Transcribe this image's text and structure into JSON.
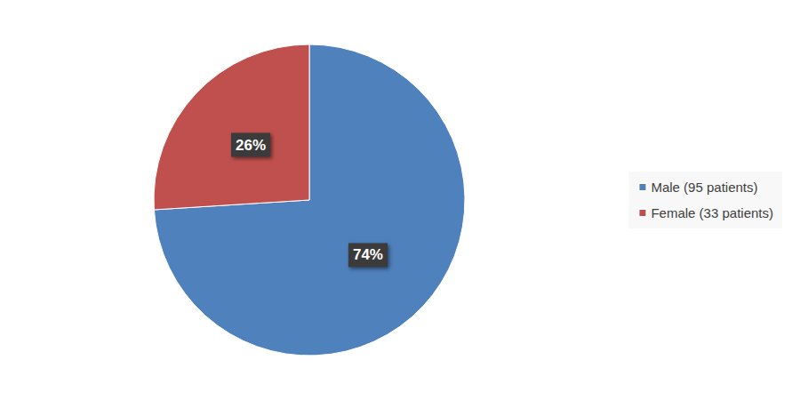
{
  "chart_data": {
    "type": "pie",
    "categories": [
      "Male (95 patients)",
      "Female (33 patients)"
    ],
    "values": [
      74,
      26
    ],
    "value_labels": [
      "74%",
      "26%"
    ],
    "colors": [
      "#4f81bd",
      "#c0504d"
    ],
    "legend": "right",
    "data_labels": true
  }
}
